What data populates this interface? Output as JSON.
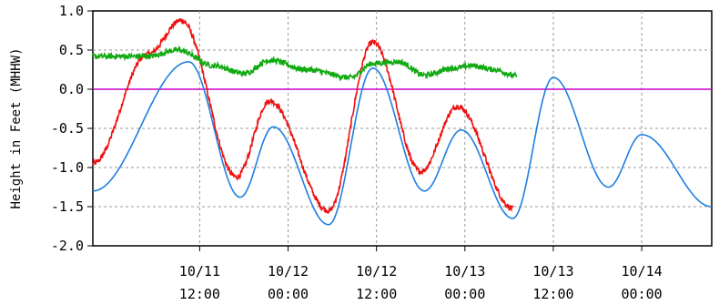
{
  "chart_data": {
    "type": "line",
    "title": "",
    "xlabel": "",
    "ylabel": "Height in Feet (MHHW)",
    "ylim": [
      -2.0,
      1.0
    ],
    "xlim": [
      "2024-10-10T21:30",
      "2024-10-14T09:30"
    ],
    "grid": true,
    "legend": "none",
    "y_ticks": [
      {
        "value": 1.0,
        "label": "1.0"
      },
      {
        "value": 0.5,
        "label": "0.5"
      },
      {
        "value": 0.0,
        "label": "0.0"
      },
      {
        "value": -0.5,
        "label": "-0.5"
      },
      {
        "value": -1.0,
        "label": "-1.0"
      },
      {
        "value": -1.5,
        "label": "-1.5"
      },
      {
        "value": -2.0,
        "label": "-2.0"
      }
    ],
    "x_ticks": [
      {
        "value": "2024-10-11T12:00",
        "date": "10/11",
        "time": "12:00"
      },
      {
        "value": "2024-10-12T00:00",
        "date": "10/12",
        "time": "00:00"
      },
      {
        "value": "2024-10-12T12:00",
        "date": "10/12",
        "time": "12:00"
      },
      {
        "value": "2024-10-13T00:00",
        "date": "10/13",
        "time": "00:00"
      },
      {
        "value": "2024-10-13T12:00",
        "date": "10/13",
        "time": "12:00"
      },
      {
        "value": "2024-10-14T00:00",
        "date": "10/14",
        "time": "00:00"
      }
    ],
    "reference_line": {
      "y": 0.0,
      "color": "#cc00cc"
    },
    "series": [
      {
        "color": "#1e7fe0",
        "style": "smooth",
        "points": [
          [
            "2024-10-10T21:30",
            -1.3
          ],
          [
            "2024-10-11T10:30",
            0.35
          ],
          [
            "2024-10-11T17:30",
            -1.38
          ],
          [
            "2024-10-11T22:00",
            -0.48
          ],
          [
            "2024-10-12T05:30",
            -1.73
          ],
          [
            "2024-10-12T11:30",
            0.27
          ],
          [
            "2024-10-12T18:30",
            -1.3
          ],
          [
            "2024-10-12T23:30",
            -0.52
          ],
          [
            "2024-10-13T06:30",
            -1.65
          ],
          [
            "2024-10-13T12:00",
            0.15
          ],
          [
            "2024-10-13T19:30",
            -1.25
          ],
          [
            "2024-10-14T00:00",
            -0.58
          ],
          [
            "2024-10-14T09:30",
            -1.5
          ]
        ]
      },
      {
        "color": "#ee1111",
        "style": "noisy",
        "points": [
          [
            "2024-10-10T21:30",
            -0.95
          ],
          [
            "2024-10-11T05:00",
            0.45
          ],
          [
            "2024-10-11T09:30",
            0.88
          ],
          [
            "2024-10-11T17:00",
            -1.12
          ],
          [
            "2024-10-11T21:30",
            -0.15
          ],
          [
            "2024-10-12T05:30",
            -1.55
          ],
          [
            "2024-10-12T11:30",
            0.6
          ],
          [
            "2024-10-12T18:00",
            -1.05
          ],
          [
            "2024-10-12T23:00",
            -0.22
          ],
          [
            "2024-10-13T06:30",
            -1.52
          ]
        ]
      },
      {
        "color": "#11aa11",
        "style": "noisy",
        "points": [
          [
            "2024-10-10T21:30",
            0.42
          ],
          [
            "2024-10-11T05:00",
            0.42
          ],
          [
            "2024-10-11T09:00",
            0.5
          ],
          [
            "2024-10-11T14:00",
            0.3
          ],
          [
            "2024-10-11T18:00",
            0.2
          ],
          [
            "2024-10-11T21:30",
            0.37
          ],
          [
            "2024-10-12T02:30",
            0.25
          ],
          [
            "2024-10-12T08:30",
            0.15
          ],
          [
            "2024-10-12T11:30",
            0.33
          ],
          [
            "2024-10-12T15:00",
            0.35
          ],
          [
            "2024-10-12T18:30",
            0.18
          ],
          [
            "2024-10-12T22:30",
            0.27
          ],
          [
            "2024-10-13T01:00",
            0.3
          ],
          [
            "2024-10-13T04:00",
            0.25
          ],
          [
            "2024-10-13T07:00",
            0.17
          ]
        ]
      }
    ]
  }
}
